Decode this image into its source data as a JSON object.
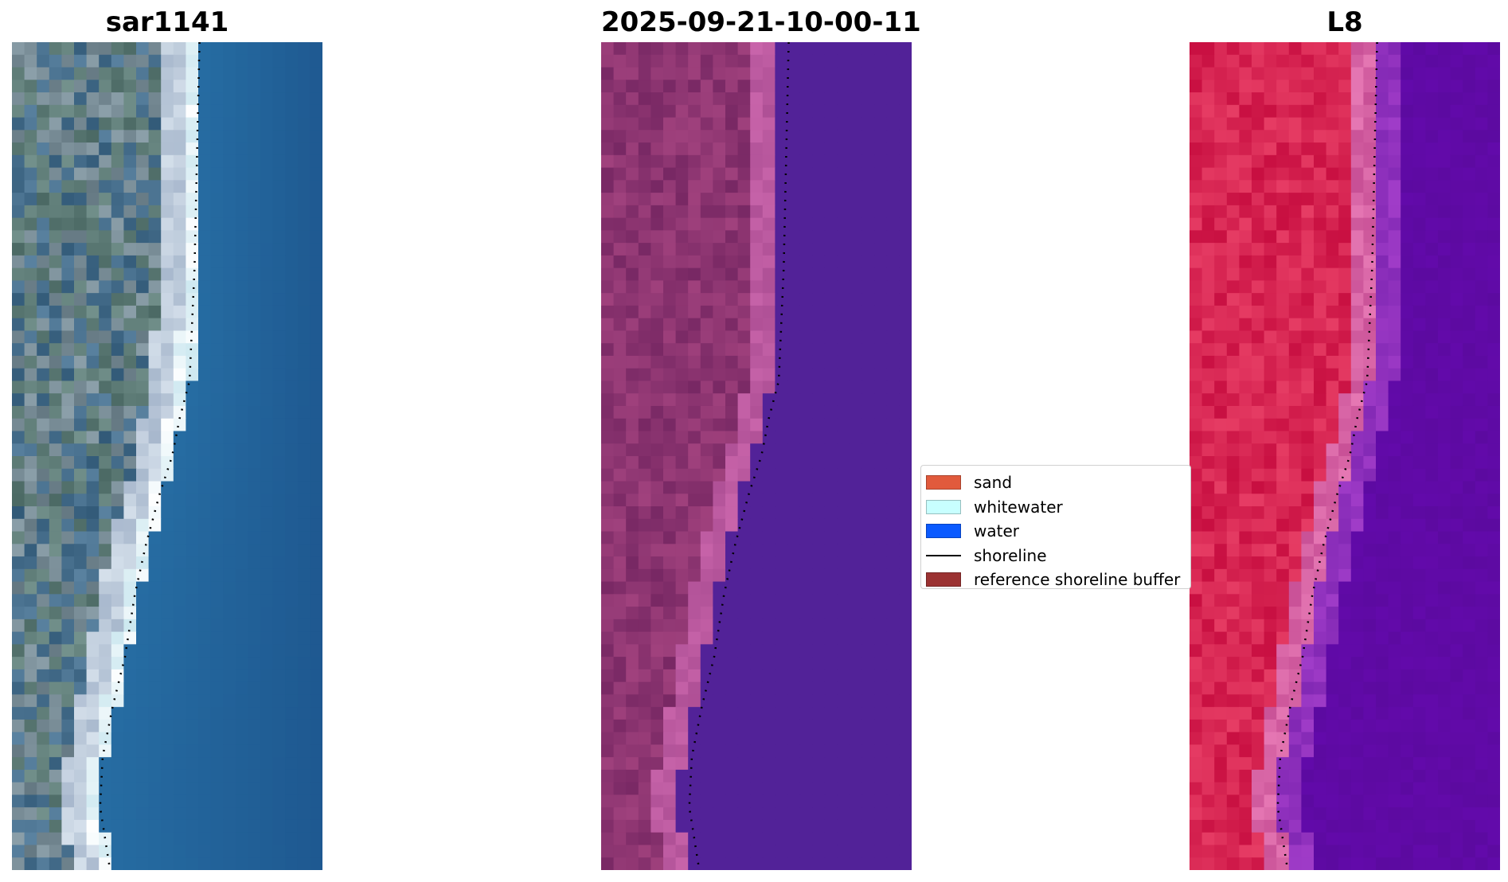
{
  "panels": [
    {
      "id": "rgb",
      "title": "sar1141"
    },
    {
      "id": "classified",
      "title": "2025-09-21-10-00-11"
    },
    {
      "id": "mndwi",
      "title": "L8"
    }
  ],
  "legend": {
    "items": [
      {
        "label": "sand",
        "color": "#e15a3c",
        "kind": "patch"
      },
      {
        "label": "whitewater",
        "color": "#c8ffff",
        "kind": "patch"
      },
      {
        "label": "water",
        "color": "#0a5aff",
        "kind": "patch"
      },
      {
        "label": "shoreline",
        "color": "#000000",
        "kind": "line"
      },
      {
        "label": "reference shoreline buffer",
        "color": "#9b3232",
        "kind": "patch"
      }
    ]
  }
}
